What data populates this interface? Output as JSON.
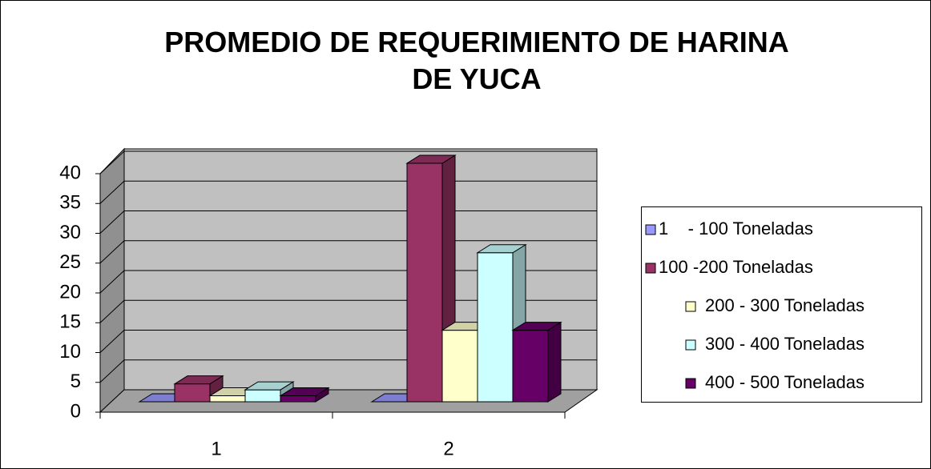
{
  "chart_data": {
    "type": "bar3d",
    "title": "PROMEDIO DE REQUERIMIENTO DE HARINA DE YUCA",
    "categories": [
      "1",
      "2"
    ],
    "series": [
      {
        "name": "1    - 100 Toneladas",
        "color": "#9999ff",
        "values": [
          0,
          0
        ]
      },
      {
        "name": "100 -200 Toneladas",
        "color": "#993366",
        "values": [
          3,
          40
        ]
      },
      {
        "name": "200 - 300 Toneladas",
        "color": "#ffffcc",
        "values": [
          1,
          12
        ]
      },
      {
        "name": "300 - 400 Toneladas",
        "color": "#ccffff",
        "values": [
          2,
          25
        ]
      },
      {
        "name": "400 - 500 Toneladas",
        "color": "#660066",
        "values": [
          1,
          12
        ]
      }
    ],
    "ylim": [
      0,
      40
    ],
    "yticks": [
      0,
      5,
      10,
      15,
      20,
      25,
      30,
      35,
      40
    ],
    "grid": true,
    "legend": "right"
  }
}
